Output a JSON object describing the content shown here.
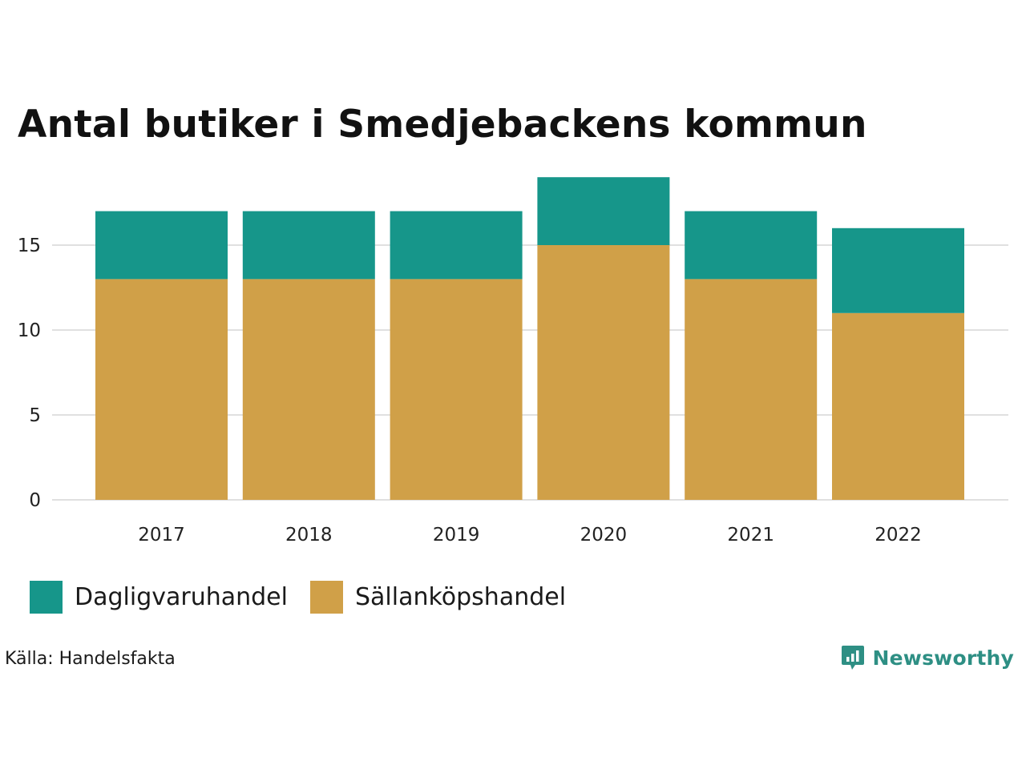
{
  "colors": {
    "dagligvaru": "#16968a",
    "sallankop": "#d0a048",
    "grid": "#e0e0e0",
    "brand": "#2e8f84"
  },
  "chart_data": {
    "type": "bar",
    "stacked": true,
    "title": "Antal butiker i Smedjebackens kommun",
    "xlabel": "",
    "ylabel": "",
    "categories": [
      "2017",
      "2018",
      "2019",
      "2020",
      "2021",
      "2022"
    ],
    "series": [
      {
        "name": "Sällanköpshandel",
        "values": [
          13,
          13,
          13,
          15,
          13,
          11
        ]
      },
      {
        "name": "Dagligvaruhandel",
        "values": [
          4,
          4,
          4,
          4,
          4,
          5
        ]
      }
    ],
    "ylim": [
      0,
      19
    ],
    "yticks": [
      0,
      5,
      10,
      15
    ],
    "grid": true,
    "legend_position": "bottom-left"
  },
  "legend": [
    {
      "label": "Dagligvaruhandel",
      "color_key": "dagligvaru"
    },
    {
      "label": "Sällanköpshandel",
      "color_key": "sallankop"
    }
  ],
  "source": "Källa: Handelsfakta",
  "brand": {
    "name": "Newsworthy",
    "icon": "newsworthy-logo-icon"
  }
}
